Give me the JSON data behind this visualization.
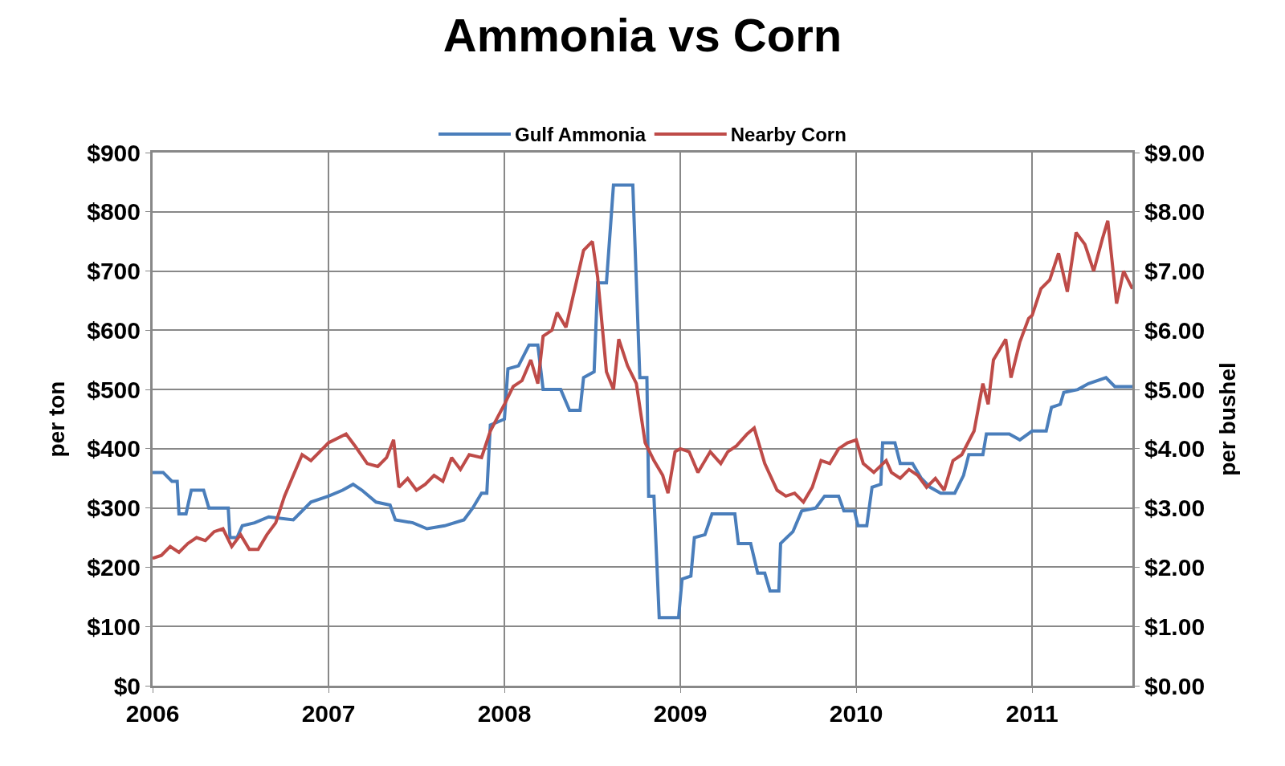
{
  "chart_data": {
    "type": "line",
    "title": "Ammonia vs Corn",
    "ylabel": "per ton",
    "y2label": "per bushel",
    "xlim": [
      2006,
      2011.57
    ],
    "xticks": [
      2006,
      2007,
      2008,
      2009,
      2010,
      2011
    ],
    "ylim": [
      0,
      900
    ],
    "yticks": [
      {
        "value": 0,
        "label": "$0"
      },
      {
        "value": 100,
        "label": "$100"
      },
      {
        "value": 200,
        "label": "$200"
      },
      {
        "value": 300,
        "label": "$300"
      },
      {
        "value": 400,
        "label": "$400"
      },
      {
        "value": 500,
        "label": "$500"
      },
      {
        "value": 600,
        "label": "$600"
      },
      {
        "value": 700,
        "label": "$700"
      },
      {
        "value": 800,
        "label": "$800"
      },
      {
        "value": 900,
        "label": "$900"
      }
    ],
    "y2lim": [
      0,
      9
    ],
    "y2ticks": [
      {
        "value": 0,
        "label": "$0.00"
      },
      {
        "value": 1,
        "label": "$1.00"
      },
      {
        "value": 2,
        "label": "$2.00"
      },
      {
        "value": 3,
        "label": "$3.00"
      },
      {
        "value": 4,
        "label": "$4.00"
      },
      {
        "value": 5,
        "label": "$5.00"
      },
      {
        "value": 6,
        "label": "$6.00"
      },
      {
        "value": 7,
        "label": "$7.00"
      },
      {
        "value": 8,
        "label": "$8.00"
      },
      {
        "value": 9,
        "label": "$9.00"
      }
    ],
    "grid": true,
    "legend": "top",
    "marker": "none",
    "line_style": "solid",
    "series": [
      {
        "name": "Gulf Ammonia",
        "color": "#4a7ebb",
        "x": [
          2006,
          2006.06,
          2006.11,
          2006.14,
          2006.15,
          2006.19,
          2006.22,
          2006.29,
          2006.32,
          2006.43,
          2006.44,
          2006.48,
          2006.51,
          2006.58,
          2006.66,
          2006.8,
          2006.9,
          2007,
          2007.08,
          2007.14,
          2007.19,
          2007.27,
          2007.35,
          2007.38,
          2007.48,
          2007.56,
          2007.66,
          2007.77,
          2007.82,
          2007.87,
          2007.9,
          2007.92,
          2008,
          2008.02,
          2008.08,
          2008.14,
          2008.19,
          2008.22,
          2008.32,
          2008.37,
          2008.43,
          2008.45,
          2008.51,
          2008.53,
          2008.58,
          2008.62,
          2008.73,
          2008.77,
          2008.81,
          2008.82,
          2008.85,
          2008.88,
          2008.99,
          2009.01,
          2009.06,
          2009.08,
          2009.14,
          2009.18,
          2009.31,
          2009.33,
          2009.4,
          2009.44,
          2009.48,
          2009.51,
          2009.56,
          2009.57,
          2009.64,
          2009.69,
          2009.77,
          2009.82,
          2009.9,
          2009.93,
          2009.99,
          2010.01,
          2010.06,
          2010.09,
          2010.14,
          2010.15,
          2010.22,
          2010.25,
          2010.32,
          2010.37,
          2010.42,
          2010.48,
          2010.56,
          2010.61,
          2010.64,
          2010.72,
          2010.74,
          2010.87,
          2010.93,
          2011,
          2011.08,
          2011.11,
          2011.16,
          2011.18,
          2011.26,
          2011.32,
          2011.42,
          2011.47,
          2011.57
        ],
        "values": [
          360,
          360,
          345,
          345,
          290,
          290,
          330,
          330,
          300,
          300,
          250,
          250,
          270,
          275,
          285,
          280,
          310,
          320,
          330,
          340,
          330,
          310,
          305,
          280,
          275,
          265,
          270,
          280,
          300,
          325,
          325,
          440,
          450,
          535,
          540,
          575,
          575,
          500,
          500,
          465,
          465,
          520,
          530,
          680,
          680,
          845,
          845,
          520,
          520,
          320,
          320,
          115,
          115,
          180,
          185,
          250,
          255,
          290,
          290,
          240,
          240,
          190,
          190,
          160,
          160,
          240,
          260,
          295,
          300,
          320,
          320,
          295,
          295,
          270,
          270,
          335,
          340,
          410,
          410,
          375,
          375,
          350,
          335,
          325,
          325,
          355,
          390,
          390,
          425,
          425,
          415,
          430,
          430,
          470,
          475,
          495,
          500,
          510,
          520,
          505,
          505
        ]
      },
      {
        "name": "Nearby Corn",
        "color": "#be4b48",
        "axis": "y2",
        "x": [
          2006,
          2006.05,
          2006.1,
          2006.15,
          2006.2,
          2006.25,
          2006.3,
          2006.35,
          2006.4,
          2006.45,
          2006.5,
          2006.55,
          2006.6,
          2006.65,
          2006.7,
          2006.75,
          2006.8,
          2006.85,
          2006.9,
          2006.95,
          2007,
          2007.1,
          2007.15,
          2007.22,
          2007.28,
          2007.33,
          2007.37,
          2007.4,
          2007.45,
          2007.5,
          2007.55,
          2007.6,
          2007.65,
          2007.7,
          2007.75,
          2007.8,
          2007.87,
          2007.92,
          2008,
          2008.05,
          2008.1,
          2008.15,
          2008.19,
          2008.22,
          2008.27,
          2008.3,
          2008.35,
          2008.4,
          2008.45,
          2008.5,
          2008.53,
          2008.58,
          2008.62,
          2008.65,
          2008.7,
          2008.75,
          2008.8,
          2008.85,
          2008.9,
          2008.93,
          2008.97,
          2009,
          2009.05,
          2009.1,
          2009.17,
          2009.23,
          2009.27,
          2009.32,
          2009.38,
          2009.42,
          2009.48,
          2009.55,
          2009.6,
          2009.65,
          2009.7,
          2009.75,
          2009.8,
          2009.85,
          2009.9,
          2009.95,
          2010,
          2010.04,
          2010.1,
          2010.17,
          2010.2,
          2010.25,
          2010.3,
          2010.35,
          2010.4,
          2010.45,
          2010.5,
          2010.55,
          2010.6,
          2010.67,
          2010.72,
          2010.75,
          2010.78,
          2010.85,
          2010.88,
          2010.93,
          2010.98,
          2011,
          2011.05,
          2011.1,
          2011.15,
          2011.2,
          2011.25,
          2011.3,
          2011.35,
          2011.4,
          2011.43,
          2011.48,
          2011.52,
          2011.57
        ],
        "values": [
          2.15,
          2.2,
          2.35,
          2.25,
          2.4,
          2.5,
          2.45,
          2.6,
          2.65,
          2.35,
          2.55,
          2.3,
          2.3,
          2.55,
          2.75,
          3.2,
          3.55,
          3.9,
          3.8,
          3.95,
          4.1,
          4.25,
          4.05,
          3.75,
          3.7,
          3.85,
          4.15,
          3.35,
          3.5,
          3.3,
          3.4,
          3.55,
          3.45,
          3.85,
          3.65,
          3.9,
          3.85,
          4.3,
          4.75,
          5.05,
          5.15,
          5.5,
          5.1,
          5.9,
          6.0,
          6.3,
          6.05,
          6.7,
          7.35,
          7.5,
          6.9,
          5.3,
          5.0,
          5.85,
          5.4,
          5.1,
          4.1,
          3.8,
          3.55,
          3.25,
          3.95,
          4.0,
          3.95,
          3.6,
          3.95,
          3.75,
          3.95,
          4.05,
          4.25,
          4.35,
          3.75,
          3.3,
          3.2,
          3.25,
          3.1,
          3.35,
          3.8,
          3.75,
          4.0,
          4.1,
          4.15,
          3.75,
          3.6,
          3.8,
          3.6,
          3.5,
          3.65,
          3.55,
          3.35,
          3.5,
          3.3,
          3.8,
          3.9,
          4.3,
          5.1,
          4.75,
          5.5,
          5.85,
          5.2,
          5.8,
          6.2,
          6.25,
          6.7,
          6.85,
          7.3,
          6.65,
          7.65,
          7.45,
          7.0,
          7.55,
          7.85,
          6.45,
          7.0,
          6.7
        ]
      }
    ]
  }
}
